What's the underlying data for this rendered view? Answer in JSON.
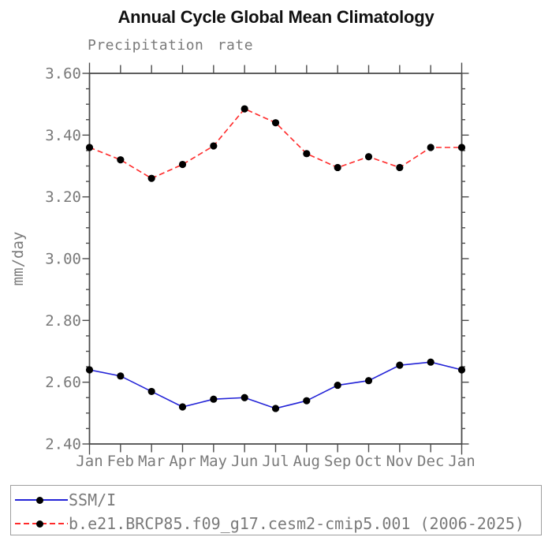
{
  "colors": {
    "background": "#ffffff",
    "title_text": "#111111",
    "tick_label_text": "#7a7a7a",
    "axis": "#4c4c4c",
    "marker": "#000000",
    "legend_border": "#9e9e9e"
  },
  "chart_data": {
    "type": "line",
    "title": "Annual Cycle Global Mean Climatology",
    "subtitle": "Precipitation rate",
    "ylabel": "mm/day",
    "xlabel": "",
    "x_categories": [
      "Jan",
      "Feb",
      "Mar",
      "Apr",
      "May",
      "Jun",
      "Jul",
      "Aug",
      "Sep",
      "Oct",
      "Nov",
      "Dec",
      "Jan"
    ],
    "ylim": [
      2.4,
      3.6
    ],
    "y_major_tick_labels": [
      "3.60",
      "3.40",
      "3.20",
      "3.00",
      "2.80",
      "2.60",
      "2.40"
    ],
    "y_major_step": 0.2,
    "y_minor_step": 0.05,
    "grid": false,
    "legend_position": "bottom",
    "series": [
      {
        "name": "SSM/I",
        "color": "#2323d7",
        "style": "solid",
        "marker": "black-dot",
        "values": [
          2.64,
          2.62,
          2.57,
          2.52,
          2.545,
          2.55,
          2.515,
          2.54,
          2.59,
          2.605,
          2.655,
          2.665,
          2.64
        ]
      },
      {
        "name": "b.e21.BRCP85.f09_g17.cesm2-cmip5.001 (2006-2025)",
        "color": "#ff2b2b",
        "style": "dashed",
        "marker": "black-dot",
        "values": [
          3.36,
          3.32,
          3.26,
          3.305,
          3.365,
          3.485,
          3.44,
          3.34,
          3.295,
          3.33,
          3.295,
          3.36,
          3.36
        ]
      }
    ]
  }
}
